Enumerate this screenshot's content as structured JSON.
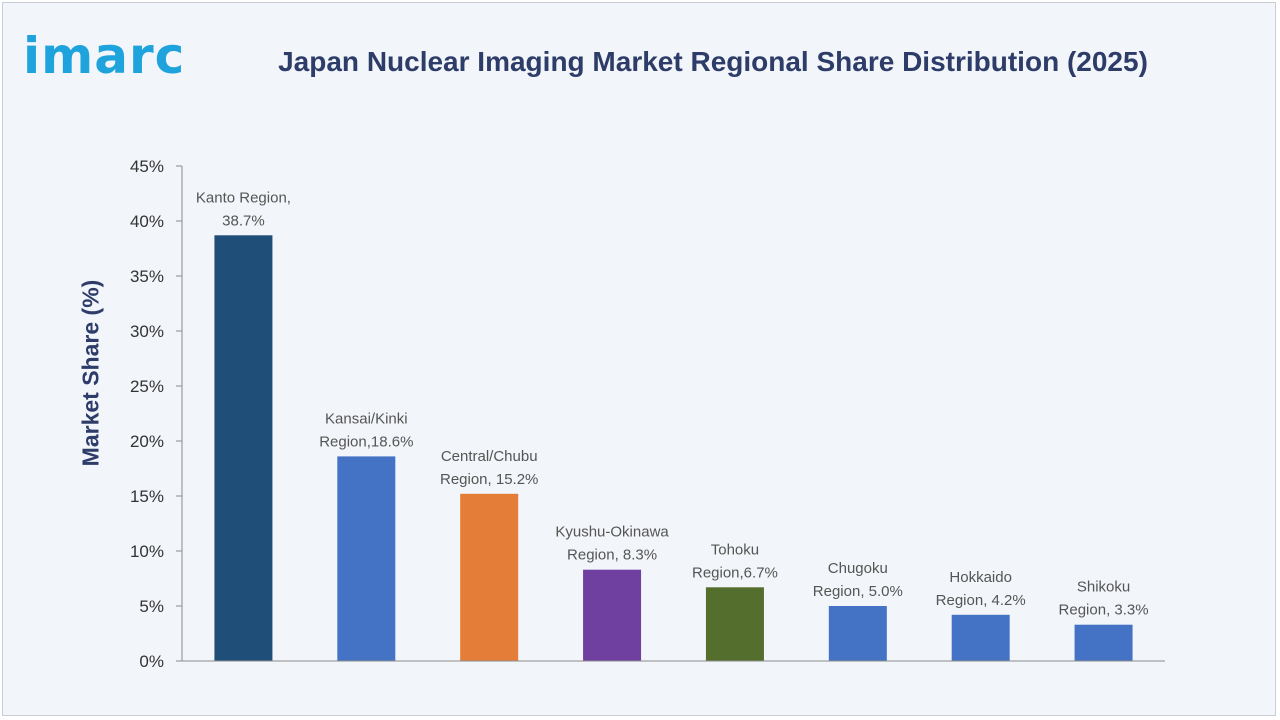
{
  "brand": {
    "logo_text": "imarc",
    "logo_color": "#1fa3dd"
  },
  "chart_data": {
    "type": "bar",
    "title": "Japan Nuclear Imaging Market Regional Share Distribution (2025)",
    "xlabel": "",
    "ylabel": "Market Share (%)",
    "ylim": [
      0,
      45
    ],
    "yticks": [
      0,
      5,
      10,
      15,
      20,
      25,
      30,
      35,
      40,
      45
    ],
    "ytick_labels": [
      "0%",
      "5%",
      "10%",
      "15%",
      "20%",
      "25%",
      "30%",
      "35%",
      "40%",
      "45%"
    ],
    "grid": false,
    "legend": "none",
    "categories": [
      "Kanto Region",
      "Kansai/Kinki Region",
      "Central/Chubu Region",
      "Kyushu-Okinawa Region",
      "Tohoku Region",
      "Chugoku Region",
      "Hokkaido Region",
      "Shikoku Region"
    ],
    "values": [
      38.7,
      18.6,
      15.2,
      8.3,
      6.7,
      5.0,
      4.2,
      3.3
    ],
    "colors": [
      "#1f4e79",
      "#4472c4",
      "#e47d38",
      "#7040a0",
      "#546e2e",
      "#4472c4",
      "#4472c4",
      "#4472c4"
    ],
    "data_labels": [
      [
        "Kanto Region,",
        "38.7%"
      ],
      [
        "Kansai/Kinki",
        "Region,18.6%"
      ],
      [
        "Central/Chubu",
        "Region, 15.2%"
      ],
      [
        "Kyushu-Okinawa",
        "Region, 8.3%"
      ],
      [
        "Tohoku",
        "Region,6.7%"
      ],
      [
        "Chugoku",
        "Region, 5.0%"
      ],
      [
        "Hokkaido",
        "Region, 4.2%"
      ],
      [
        "Shikoku",
        "Region, 3.3%"
      ]
    ]
  }
}
